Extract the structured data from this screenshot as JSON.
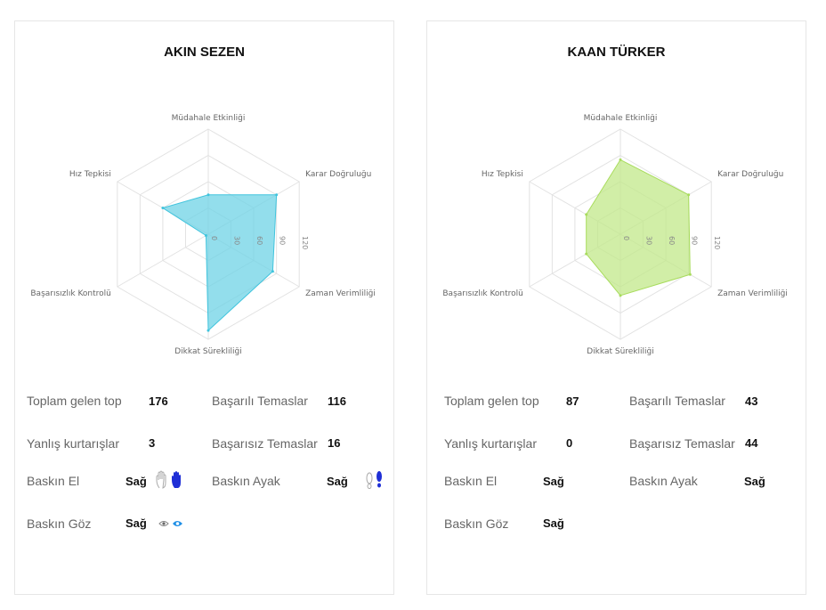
{
  "players": [
    {
      "name": "AKIN SEZEN",
      "fill_color": "#6fd3e6",
      "stroke_color": "#40c4dd",
      "stats": {
        "toplam_label": "Toplam gelen top",
        "toplam_value": "176",
        "basarili_label": "Başarılı Temaslar",
        "basarili_value": "116",
        "yanlis_label": "Yanlış kurtarışlar",
        "yanlis_value": "3",
        "basarisiz_label": "Başarısız Temaslar",
        "basarisiz_value": "16",
        "el_label": "Baskın El",
        "el_value": "Sağ",
        "ayak_label": "Baskın Ayak",
        "ayak_value": "Sağ",
        "goz_label": "Baskın Göz",
        "goz_value": "Sağ"
      },
      "icons": [
        "hand-outline-icon",
        "hand-filled-blue-icon",
        "foot-outline-icon",
        "foot-filled-blue-icon",
        "eye-outline-icon",
        "eye-filled-blue-icon"
      ]
    },
    {
      "name": "KAAN TÜRKER",
      "fill_color": "#c2e88a",
      "stroke_color": "#a8dc5c",
      "stats": {
        "toplam_label": "Toplam gelen top",
        "toplam_value": "87",
        "basarili_label": "Başarılı Temaslar",
        "basarili_value": "43",
        "yanlis_label": "Yanlış kurtarışlar",
        "yanlis_value": "0",
        "basarisiz_label": "Başarısız Temaslar",
        "basarisiz_value": "44",
        "el_label": "Baskın El",
        "el_value": "Sağ",
        "ayak_label": "Baskın Ayak",
        "ayak_value": "Sağ",
        "goz_label": "Baskın Göz",
        "goz_value": "Sağ"
      }
    }
  ],
  "chart_data": [
    {
      "type": "radar",
      "title": "AKIN SEZEN",
      "axes": [
        "Müdahale Etkinliği",
        "Karar Doğruluğu",
        "Zaman Verimliliği",
        "Dikkat Sürekliliği",
        "Başarısızlık Kontrolü",
        "Hız Tepkisi"
      ],
      "ticks": [
        "0",
        "30",
        "60",
        "90",
        "120"
      ],
      "range": [
        0,
        120
      ],
      "values": [
        45,
        90,
        85,
        110,
        3,
        60
      ]
    },
    {
      "type": "radar",
      "title": "KAAN TÜRKER",
      "axes": [
        "Müdahale Etkinliği",
        "Karar Doğruluğu",
        "Zaman Verimliliği",
        "Dikkat Sürekliliği",
        "Başarısızlık Kontrolü",
        "Hız Tepkisi"
      ],
      "ticks": [
        "0",
        "30",
        "60",
        "90",
        "120"
      ],
      "range": [
        0,
        120
      ],
      "values": [
        85,
        90,
        92,
        70,
        45,
        45
      ]
    }
  ]
}
